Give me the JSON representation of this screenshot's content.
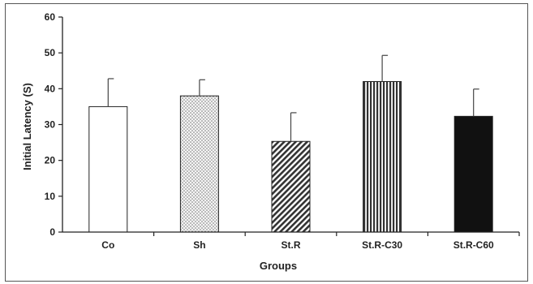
{
  "chart_data": {
    "type": "bar",
    "title": "",
    "xlabel": "Groups",
    "ylabel": "Initial Latency (S)",
    "ylim": [
      0,
      60
    ],
    "yticks": [
      0,
      10,
      20,
      30,
      40,
      50,
      60
    ],
    "categories": [
      "Co",
      "Sh",
      "St.R",
      "St.R-C30",
      "St.R-C60"
    ],
    "values": [
      35,
      38,
      25.3,
      42,
      32.3
    ],
    "errors": [
      7.8,
      4.5,
      8,
      7.3,
      7.6
    ],
    "fills": [
      "white",
      "dots",
      "diagonal",
      "vertical",
      "solid"
    ],
    "grid": false,
    "legend": "none"
  }
}
